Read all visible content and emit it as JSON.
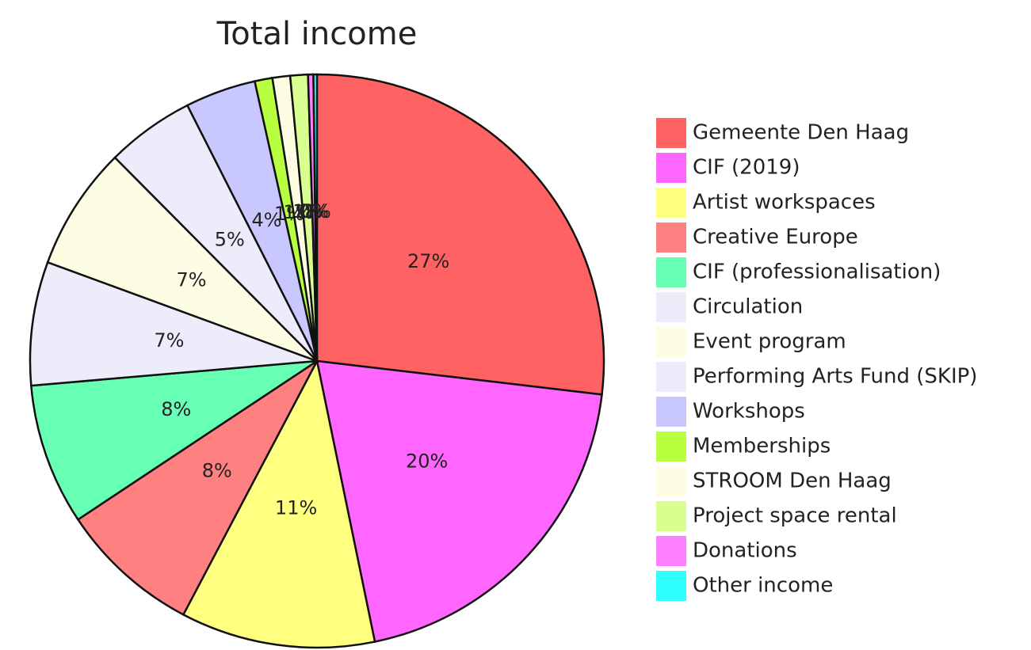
{
  "chart_data": {
    "type": "pie",
    "title": "Total income",
    "categories": [
      "Gemeente Den Haag",
      "CIF (2019)",
      "Artist workspaces",
      "Creative Europe",
      "CIF (professionalisation)",
      "Circulation",
      "Event program",
      "Performing Arts Fund (SKIP)",
      "Workshops",
      "Memberships",
      "STROOM Den Haag",
      "Project space rental",
      "Donations",
      "Other income"
    ],
    "values": [
      27,
      20,
      11,
      8,
      8,
      7,
      7,
      5,
      4,
      1,
      1,
      1,
      0.3,
      0.2
    ],
    "value_labels": [
      "27%",
      "20%",
      "11%",
      "8%",
      "8%",
      "7%",
      "7%",
      "5%",
      "4%",
      "1%",
      "1%",
      "1%",
      "0%",
      "0%"
    ],
    "colors": [
      "#ff6262",
      "#ff66ff",
      "#ffff80",
      "#ff8080",
      "#66ffb3",
      "#ececfb",
      "#fdfde4",
      "#ececfb",
      "#c8c8ff",
      "#b8ff40",
      "#fdfde4",
      "#d8ff90",
      "#ff80ff",
      "#30ffff"
    ],
    "legend": "right"
  }
}
